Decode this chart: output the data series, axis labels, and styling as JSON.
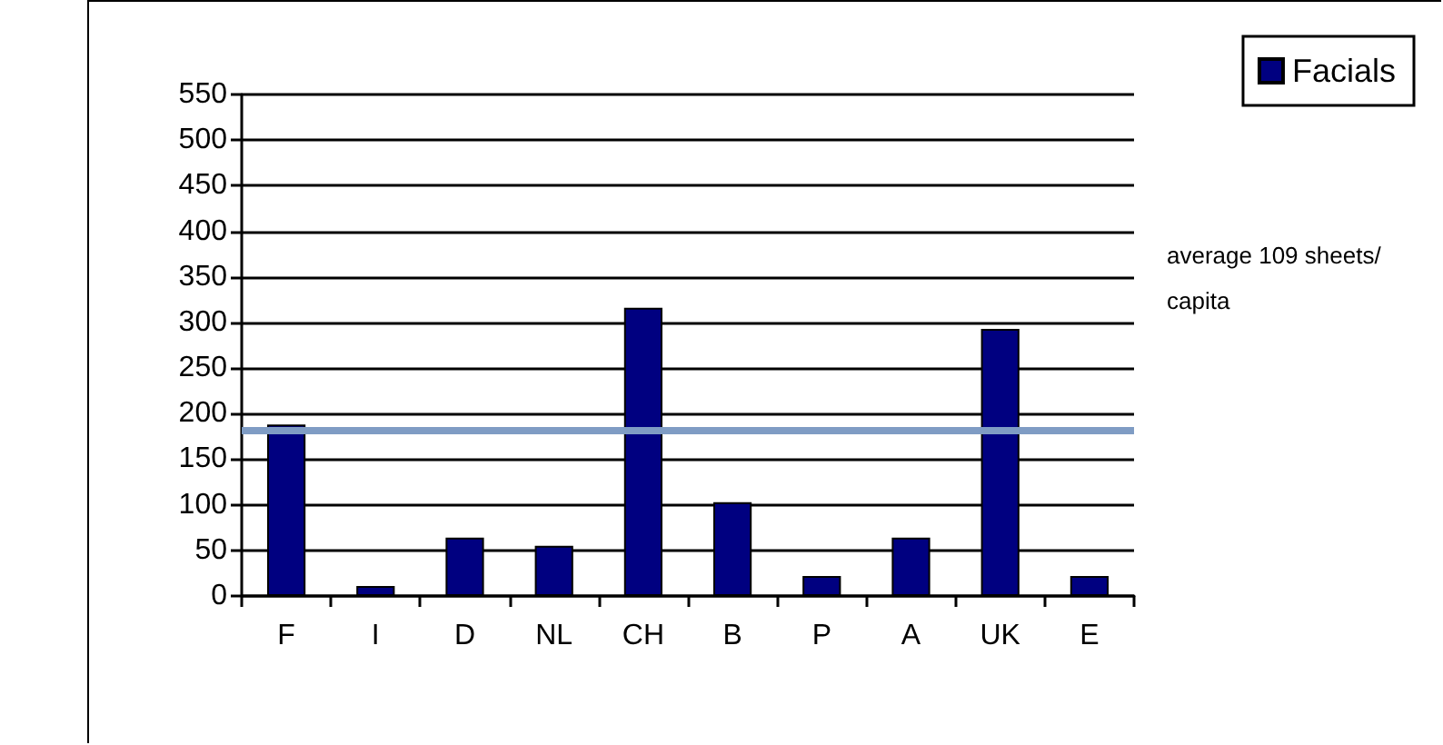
{
  "chart_data": {
    "type": "bar",
    "categories": [
      "F",
      "I",
      "D",
      "NL",
      "CH",
      "B",
      "P",
      "A",
      "UK",
      "E"
    ],
    "series": [
      {
        "name": "Facials",
        "color": "#000080",
        "values": [
          188,
          11,
          64,
          55,
          316,
          103,
          22,
          64,
          293,
          22
        ]
      }
    ],
    "ylim": [
      0,
      550
    ],
    "yticks": [
      0,
      50,
      100,
      150,
      200,
      250,
      300,
      350,
      400,
      450,
      500,
      550
    ],
    "grid": "y",
    "legend": "top right",
    "ref_lines": [
      {
        "axis": "y",
        "value": 182,
        "label": null,
        "color": "#7f9cc4"
      }
    ],
    "annotations": [
      "average 109 sheets/capita"
    ]
  }
}
